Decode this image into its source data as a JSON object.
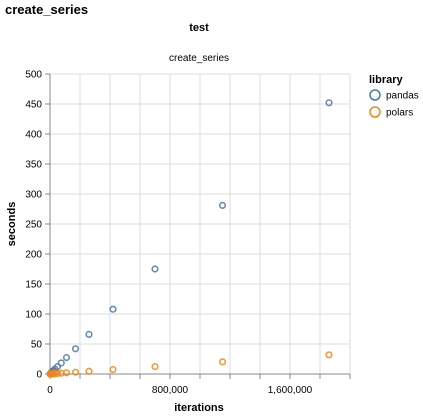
{
  "page": {
    "title": "create_series"
  },
  "chart_data": {
    "type": "scatter",
    "title": "test",
    "subtitle": "create_series",
    "xlabel": "iterations",
    "ylabel": "seconds",
    "xlim": [
      0,
      2000000
    ],
    "ylim": [
      0,
      500
    ],
    "x_ticks": [
      0,
      800000,
      1600000
    ],
    "x_tick_labels": [
      "0",
      "800,000",
      "1,600,000"
    ],
    "x_grid_step": 200000,
    "y_ticks": [
      0,
      50,
      100,
      150,
      200,
      250,
      300,
      350,
      400,
      450,
      500
    ],
    "y_tick_labels": [
      "0",
      "50",
      "100",
      "150",
      "200",
      "250",
      "300",
      "350",
      "400",
      "450",
      "500"
    ],
    "grid": true,
    "marker": "open-circle",
    "legend": {
      "title": "library",
      "placement": "right"
    },
    "series": [
      {
        "name": "pandas",
        "color": "#4c78a8",
        "points": [
          [
            1000,
            0.3
          ],
          [
            3000,
            0.8
          ],
          [
            6000,
            1.5
          ],
          [
            10000,
            2.5
          ],
          [
            15000,
            3.8
          ],
          [
            22000,
            5.4
          ],
          [
            33000,
            8.2
          ],
          [
            50000,
            12.3
          ],
          [
            75000,
            18.4
          ],
          [
            110000,
            27.4
          ],
          [
            170000,
            42
          ],
          [
            260000,
            66
          ],
          [
            420000,
            108
          ],
          [
            700000,
            175
          ],
          [
            1150000,
            281
          ],
          [
            1860000,
            452
          ]
        ]
      },
      {
        "name": "polars",
        "color": "#f58518",
        "points": [
          [
            1000,
            0.02
          ],
          [
            3000,
            0.06
          ],
          [
            6000,
            0.1
          ],
          [
            10000,
            0.2
          ],
          [
            15000,
            0.3
          ],
          [
            22000,
            0.4
          ],
          [
            33000,
            0.6
          ],
          [
            50000,
            0.9
          ],
          [
            75000,
            1.3
          ],
          [
            110000,
            2
          ],
          [
            170000,
            3
          ],
          [
            260000,
            4.6
          ],
          [
            420000,
            7.4
          ],
          [
            700000,
            12.4
          ],
          [
            1150000,
            20.3
          ],
          [
            1860000,
            32
          ]
        ]
      }
    ]
  }
}
